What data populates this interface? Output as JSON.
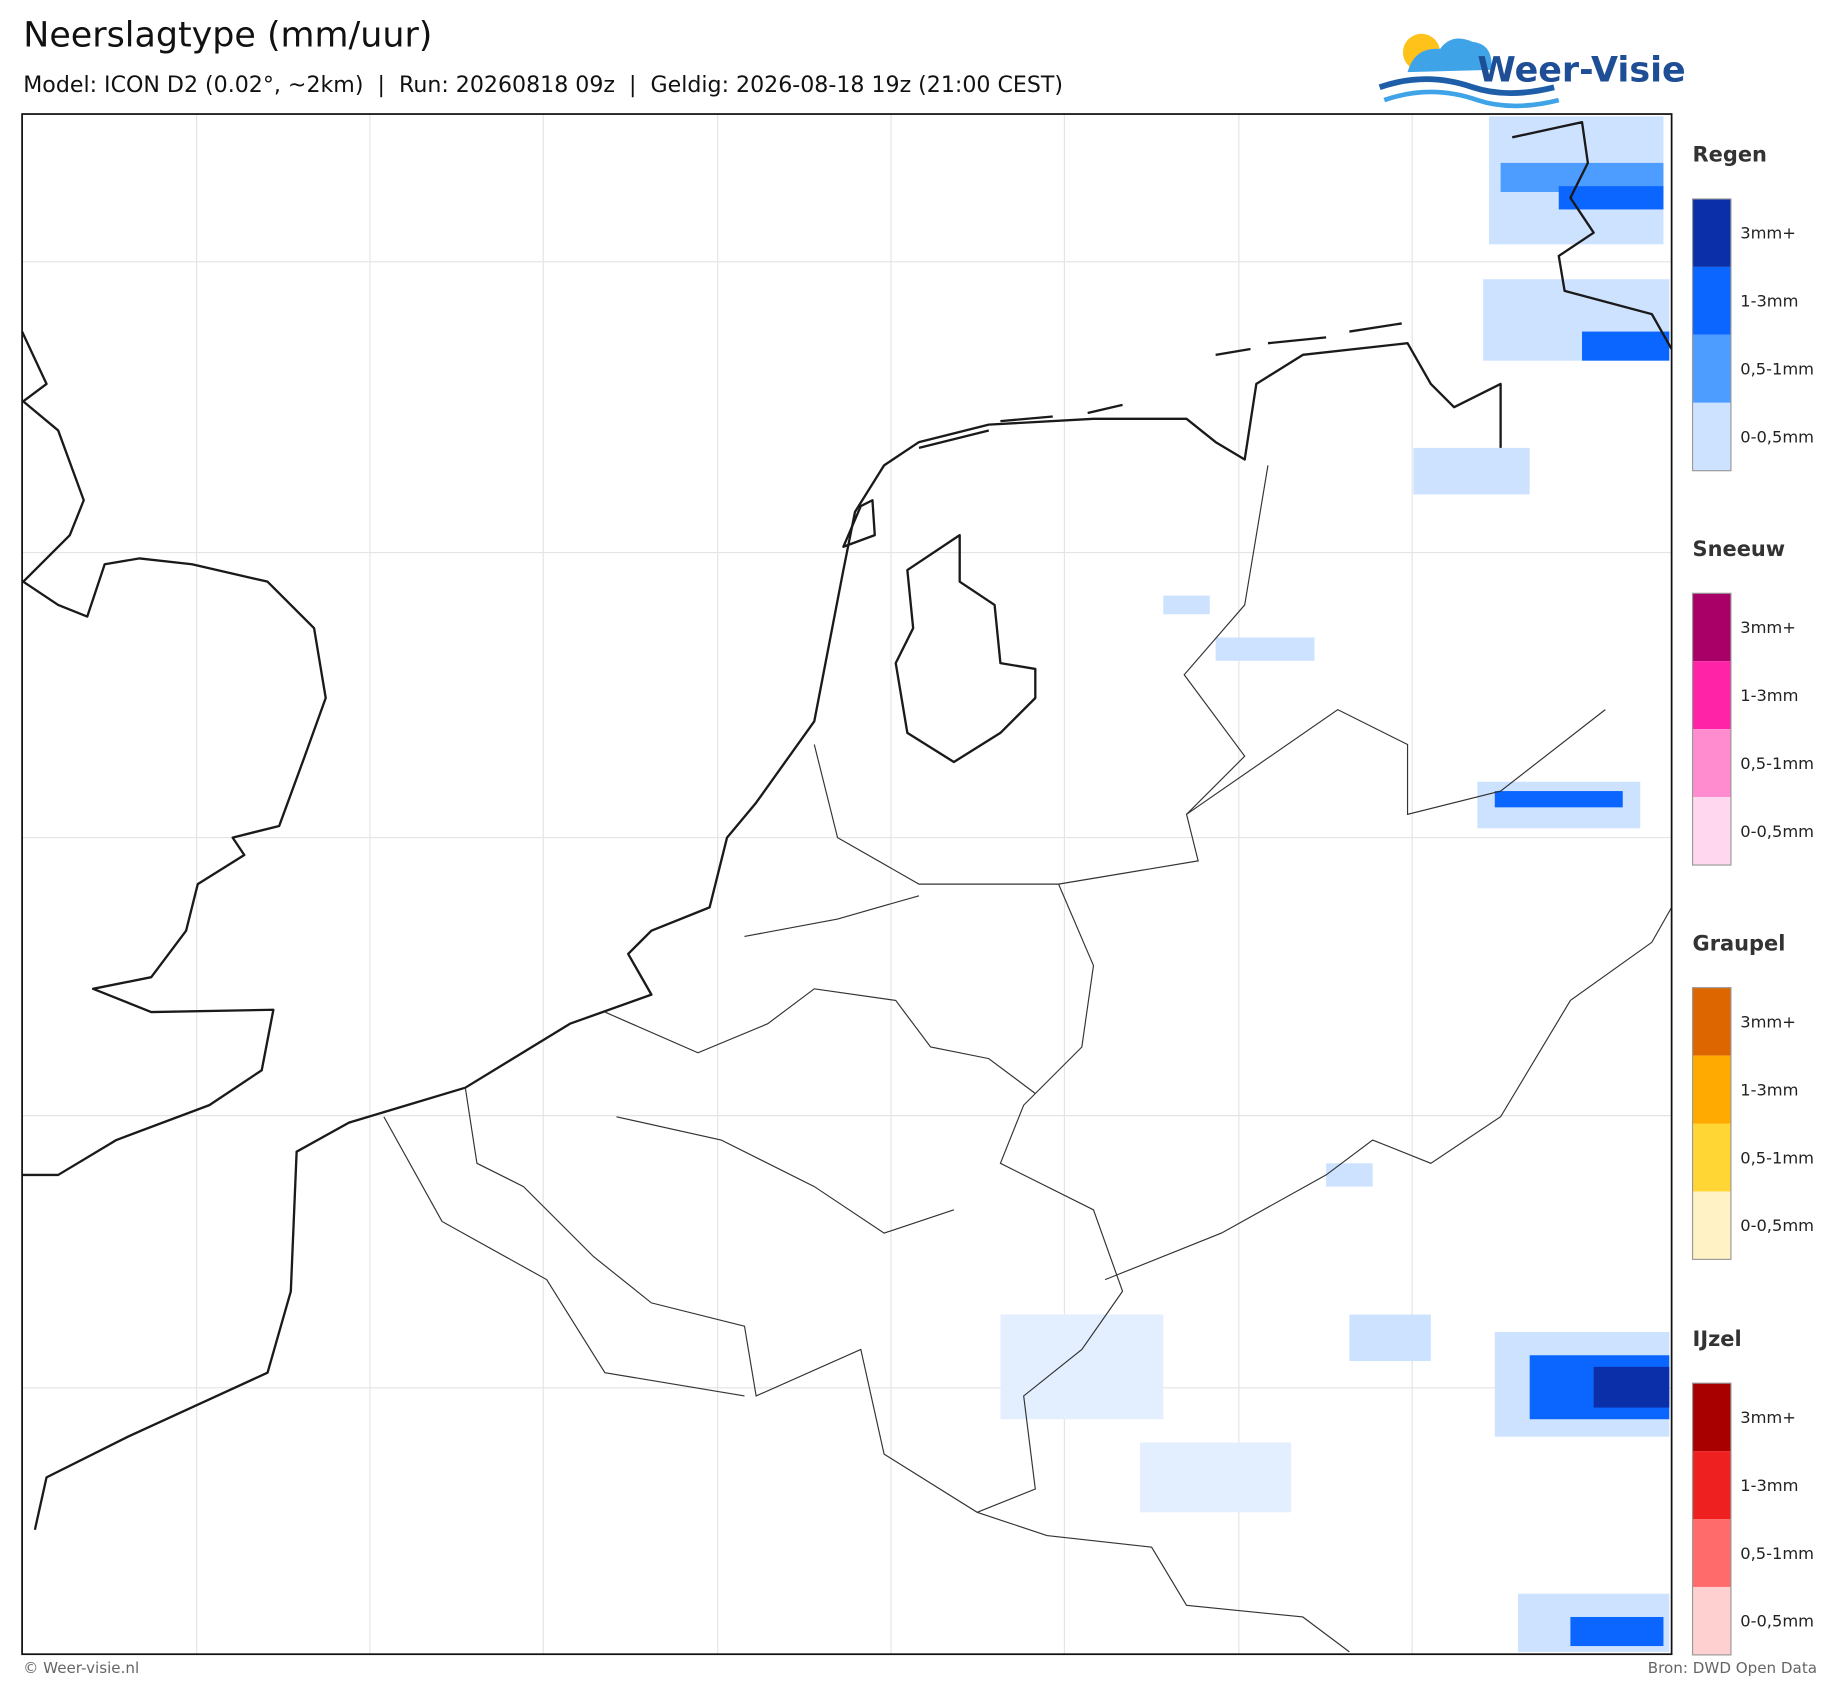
{
  "header": {
    "title": "Neerslagtype (mm/uur)",
    "subtitle": "Model: ICON D2 (0.02°, ~2km)  |  Run: 20260818 09z  |  Geldig: 2026-08-18 19z (21:00 CEST)"
  },
  "logo": {
    "text": "Weer-Visie"
  },
  "legend": [
    {
      "title": "Regen",
      "items": [
        {
          "label": "3mm+",
          "color": "#0a2fa8"
        },
        {
          "label": "1-3mm",
          "color": "#0a66ff"
        },
        {
          "label": "0,5-1mm",
          "color": "#4c9dff"
        },
        {
          "label": "0-0,5mm",
          "color": "#cde2ff"
        }
      ]
    },
    {
      "title": "Sneeuw",
      "items": [
        {
          "label": "3mm+",
          "color": "#a80066"
        },
        {
          "label": "1-3mm",
          "color": "#ff23a8"
        },
        {
          "label": "0,5-1mm",
          "color": "#ff8ccf"
        },
        {
          "label": "0-0,5mm",
          "color": "#ffd7ee"
        }
      ]
    },
    {
      "title": "Graupel",
      "items": [
        {
          "label": "3mm+",
          "color": "#dd6600"
        },
        {
          "label": "1-3mm",
          "color": "#ffaa00"
        },
        {
          "label": "0,5-1mm",
          "color": "#ffd633"
        },
        {
          "label": "0-0,5mm",
          "color": "#fff2c4"
        }
      ]
    },
    {
      "title": "IJzel",
      "items": [
        {
          "label": "3mm+",
          "color": "#a80000"
        },
        {
          "label": "1-3mm",
          "color": "#ee2020"
        },
        {
          "label": "0,5-1mm",
          "color": "#ff6b6b"
        },
        {
          "label": "0-0,5mm",
          "color": "#ffd0d0"
        }
      ]
    }
  ],
  "footer": {
    "left": "© Weer-visie.nl",
    "right": "Bron: DWD Open Data"
  }
}
